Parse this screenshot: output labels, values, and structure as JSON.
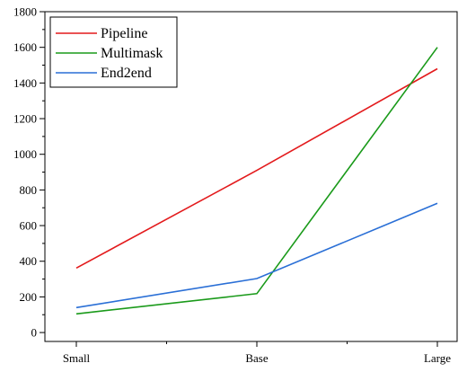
{
  "chart_data": {
    "type": "line",
    "categories": [
      "Small",
      "Base",
      "Large"
    ],
    "series": [
      {
        "name": "Pipeline",
        "color": "#e31a1c",
        "values": [
          362,
          910,
          1480
        ]
      },
      {
        "name": "Multimask",
        "color": "#1a9a1a",
        "values": [
          105,
          218,
          1600
        ]
      },
      {
        "name": "End2end",
        "color": "#2a6fd6",
        "values": [
          140,
          303,
          725
        ]
      }
    ],
    "ylim": [
      -50,
      1800
    ],
    "yticks": [
      0,
      200,
      400,
      600,
      800,
      1000,
      1200,
      1400,
      1600,
      1800
    ],
    "legend_position": "top-left",
    "grid": false
  }
}
